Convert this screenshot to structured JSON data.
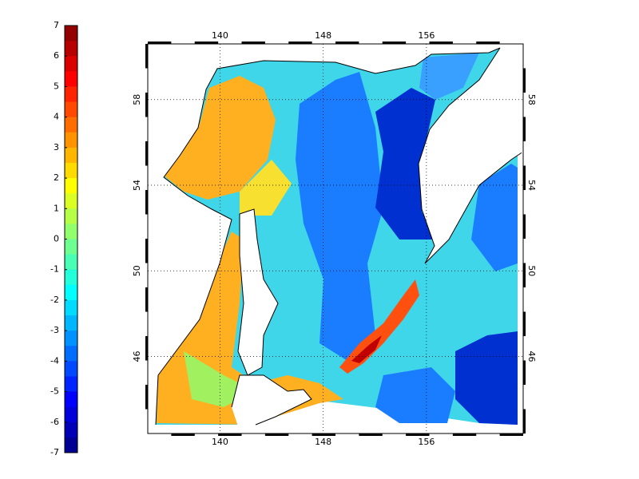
{
  "colorbar": {
    "ticks": [
      7,
      6,
      5,
      4,
      3,
      2,
      1,
      0,
      -1,
      -2,
      -3,
      -4,
      -5,
      -6,
      -7
    ],
    "colormap": "jet",
    "steps": 28
  },
  "map": {
    "xlim": [
      134.4,
      163.5
    ],
    "ylim": [
      42.4,
      60.6
    ],
    "xticks": [
      140,
      148,
      156
    ],
    "yticks": [
      46,
      50,
      54,
      58
    ],
    "grid": true
  }
}
